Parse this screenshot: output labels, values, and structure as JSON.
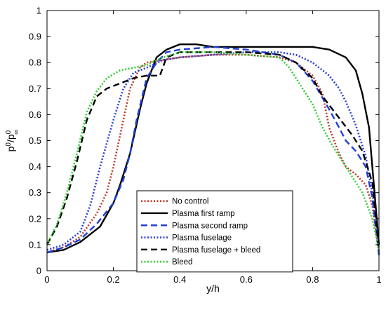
{
  "chart_data": {
    "type": "line",
    "xlabel": "y/h",
    "ylabel": "p",
    "ylabel_parts": {
      "base1": "p",
      "sup1": "0",
      "slash": "/p",
      "sup2": "0",
      "sub2": "∞"
    },
    "xlim": [
      0,
      1
    ],
    "ylim": [
      0,
      1
    ],
    "xticks": [
      0,
      0.2,
      0.4,
      0.6,
      0.8,
      1
    ],
    "xtick_labels": [
      "0",
      "0.2",
      "0.4",
      "0.6",
      "0.8",
      "1"
    ],
    "yticks": [
      0,
      0.1,
      0.2,
      0.3,
      0.4,
      0.5,
      0.6,
      0.7,
      0.8,
      0.9,
      1
    ],
    "ytick_labels": [
      "0",
      "0.1",
      "0.2",
      "0.3",
      "0.4",
      "0.5",
      "0.6",
      "0.7",
      "0.8",
      "0.9",
      "1"
    ],
    "grid": false,
    "legend_position": "bottom-center",
    "series": [
      {
        "name": "No control",
        "color": "#c0392b",
        "dash": "dotted",
        "x": [
          0,
          0.05,
          0.1,
          0.15,
          0.18,
          0.2,
          0.22,
          0.25,
          0.28,
          0.3,
          0.35,
          0.4,
          0.5,
          0.6,
          0.7,
          0.75,
          0.8,
          0.83,
          0.85,
          0.88,
          0.9,
          0.93,
          0.96,
          0.98,
          1.0
        ],
        "y": [
          0.07,
          0.09,
          0.13,
          0.22,
          0.3,
          0.4,
          0.52,
          0.7,
          0.78,
          0.8,
          0.81,
          0.82,
          0.83,
          0.83,
          0.82,
          0.8,
          0.75,
          0.68,
          0.55,
          0.45,
          0.4,
          0.37,
          0.33,
          0.25,
          0.07
        ]
      },
      {
        "name": "Plasma first ramp",
        "color": "#000000",
        "dash": "solid",
        "x": [
          0,
          0.05,
          0.1,
          0.13,
          0.16,
          0.2,
          0.22,
          0.25,
          0.28,
          0.3,
          0.33,
          0.36,
          0.4,
          0.45,
          0.5,
          0.6,
          0.7,
          0.8,
          0.85,
          0.9,
          0.93,
          0.95,
          0.97,
          0.98,
          1.0
        ],
        "y": [
          0.07,
          0.08,
          0.11,
          0.14,
          0.17,
          0.26,
          0.33,
          0.45,
          0.62,
          0.72,
          0.82,
          0.85,
          0.87,
          0.87,
          0.86,
          0.86,
          0.86,
          0.86,
          0.85,
          0.82,
          0.77,
          0.68,
          0.55,
          0.4,
          0.1
        ]
      },
      {
        "name": "Plasma second ramp",
        "color": "#1f3fd6",
        "dash": "dashed",
        "x": [
          0,
          0.05,
          0.1,
          0.15,
          0.2,
          0.23,
          0.25,
          0.27,
          0.3,
          0.33,
          0.36,
          0.4,
          0.5,
          0.6,
          0.7,
          0.75,
          0.8,
          0.85,
          0.88,
          0.9,
          0.93,
          0.96,
          0.98,
          1.0
        ],
        "y": [
          0.07,
          0.09,
          0.12,
          0.18,
          0.26,
          0.35,
          0.45,
          0.58,
          0.74,
          0.8,
          0.84,
          0.85,
          0.86,
          0.85,
          0.83,
          0.8,
          0.73,
          0.62,
          0.55,
          0.5,
          0.46,
          0.4,
          0.28,
          0.06
        ]
      },
      {
        "name": "Plasma fuselage",
        "color": "#2d3fd6",
        "dash": "dotted",
        "x": [
          0,
          0.05,
          0.1,
          0.13,
          0.16,
          0.2,
          0.23,
          0.26,
          0.3,
          0.35,
          0.4,
          0.5,
          0.6,
          0.7,
          0.75,
          0.8,
          0.85,
          0.88,
          0.9,
          0.93,
          0.96,
          0.98,
          1.0
        ],
        "y": [
          0.08,
          0.1,
          0.15,
          0.25,
          0.4,
          0.58,
          0.7,
          0.76,
          0.78,
          0.81,
          0.82,
          0.83,
          0.84,
          0.84,
          0.83,
          0.8,
          0.75,
          0.7,
          0.65,
          0.56,
          0.44,
          0.3,
          0.1
        ]
      },
      {
        "name": "Plasma fuselage + bleed",
        "color": "#000000",
        "dash": "dashed",
        "x": [
          0,
          0.03,
          0.06,
          0.09,
          0.12,
          0.15,
          0.18,
          0.22,
          0.26,
          0.3,
          0.34,
          0.36,
          0.4,
          0.5,
          0.6,
          0.7,
          0.75,
          0.8,
          0.83,
          0.86,
          0.89,
          0.92,
          0.95,
          0.98,
          1.0
        ],
        "y": [
          0.1,
          0.17,
          0.28,
          0.42,
          0.58,
          0.67,
          0.7,
          0.72,
          0.74,
          0.75,
          0.75,
          0.82,
          0.84,
          0.84,
          0.84,
          0.83,
          0.8,
          0.74,
          0.67,
          0.62,
          0.57,
          0.52,
          0.46,
          0.34,
          0.08
        ]
      },
      {
        "name": "Bleed",
        "color": "#33cc33",
        "dash": "dotted",
        "x": [
          0,
          0.03,
          0.06,
          0.09,
          0.12,
          0.15,
          0.18,
          0.22,
          0.26,
          0.3,
          0.35,
          0.4,
          0.5,
          0.6,
          0.7,
          0.73,
          0.76,
          0.8,
          0.83,
          0.86,
          0.89,
          0.92,
          0.95,
          0.98,
          1.0
        ],
        "y": [
          0.1,
          0.18,
          0.3,
          0.45,
          0.61,
          0.69,
          0.74,
          0.77,
          0.78,
          0.79,
          0.82,
          0.84,
          0.84,
          0.83,
          0.82,
          0.78,
          0.72,
          0.64,
          0.55,
          0.48,
          0.42,
          0.36,
          0.3,
          0.2,
          0.08
        ]
      }
    ]
  }
}
